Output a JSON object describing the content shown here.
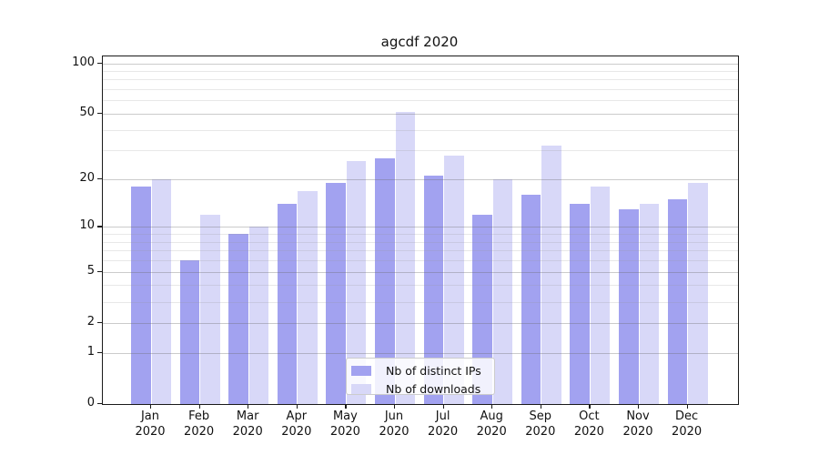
{
  "title": "agcdf 2020",
  "colors": {
    "distinct_ips_bar": "#a2a2f0",
    "downloads_bar": "#d8d8f8",
    "axis": "#1a1a1a",
    "major_gridline": "#c6c6c6",
    "minor_gridline": "#e9e9e9",
    "legend_border": "#cccccc"
  },
  "chart_data": {
    "type": "bar",
    "title": "agcdf 2020",
    "categories": [
      "Jan",
      "Feb",
      "Mar",
      "Apr",
      "May",
      "Jun",
      "Jul",
      "Aug",
      "Sep",
      "Oct",
      "Nov",
      "Dec"
    ],
    "category_year": "2020",
    "series": [
      {
        "name": "Nb of distinct IPs",
        "color": "#a2a2f0",
        "values": [
          18,
          6,
          9,
          14,
          19,
          27,
          21,
          12,
          16,
          14,
          13,
          15
        ]
      },
      {
        "name": "Nb of downloads",
        "color": "#d8d8f8",
        "values": [
          20,
          12,
          10,
          17,
          26,
          51,
          28,
          20,
          32,
          18,
          14,
          19
        ]
      }
    ],
    "xlabel": "",
    "ylabel": "",
    "yscale": "log1p",
    "ylim": [
      0,
      101
    ],
    "yticks": [
      0,
      1,
      2,
      5,
      10,
      20,
      50,
      100
    ],
    "minor_gridlines": [
      3,
      4,
      6,
      7,
      8,
      9,
      30,
      40,
      60,
      70,
      80,
      90
    ],
    "grid": true,
    "legend_position": "lower center",
    "legend_labels": [
      "Nb of distinct IPs",
      "Nb of downloads"
    ]
  }
}
